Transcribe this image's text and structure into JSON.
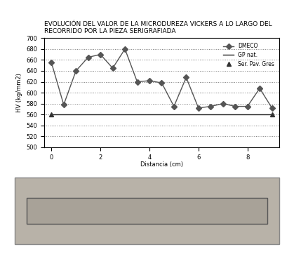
{
  "chart_data": {
    "type": "line",
    "title": "EVOLUCIÓN DEL VALOR DE LA MICRODUREZA VICKERS A LO LARGO DEL RECORRIDO POR LA PIEZA SERIGRAFIADA",
    "x_label": "Distancia (cm)",
    "y_label": "HV (kg/mm2)",
    "series": [
      {
        "name": "DMECO",
        "color": "#555555",
        "marker": "diamond",
        "line_style": "solid",
        "x": [
          0,
          0.5,
          1.0,
          1.5,
          2.0,
          2.5,
          3.0,
          3.5,
          4.0,
          4.5,
          5.0,
          5.5,
          6.0,
          6.5,
          7.0,
          7.5,
          8.0,
          8.5,
          9.0
        ],
        "values": [
          655,
          578,
          640,
          665,
          670,
          645,
          680,
          620,
          622,
          618,
          575,
          628,
          572,
          575,
          580,
          575,
          575,
          608,
          572
        ]
      },
      {
        "name": "GP nat.",
        "color": "#222222",
        "marker": "none",
        "line_style": "solid",
        "x": [
          0,
          9.0
        ],
        "values": [
          560,
          560
        ]
      },
      {
        "name": "Ser. Pav. Gres",
        "color": "#333333",
        "marker": "triangle",
        "line_style": "none",
        "x": [
          0,
          9.0
        ],
        "values": [
          560,
          560
        ]
      }
    ],
    "xlim": [
      -0.3,
      9.3
    ],
    "xticks": [
      0,
      2,
      4,
      6,
      8
    ],
    "ylim": [
      500,
      700
    ],
    "yticks": [
      500,
      520,
      540,
      560,
      580,
      600,
      620,
      640,
      660,
      680,
      700
    ],
    "grid": true,
    "legend": "upper right"
  }
}
